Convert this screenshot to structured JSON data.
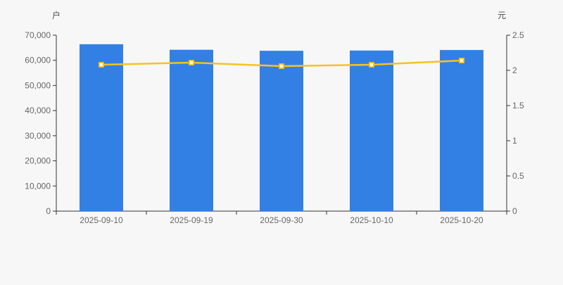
{
  "page": {
    "background_color": "#f7f7f7"
  },
  "chart_data": {
    "type": "bar",
    "subtype": "dual-axis-bar-line-combo",
    "title": "",
    "categories": [
      "2025-09-10",
      "2025-09-19",
      "2025-09-30",
      "2025-10-10",
      "2025-10-20"
    ],
    "series": [
      {
        "name": "bar-series-households",
        "type": "bar",
        "yaxis": "left",
        "color": "#3380e4",
        "values": [
          66400,
          64200,
          63800,
          63900,
          64100
        ]
      },
      {
        "name": "line-series-yuan",
        "type": "line",
        "yaxis": "right",
        "color": "#f5c321",
        "marker": "hollow-square",
        "marker_fill": "#ffffff",
        "values": [
          2.08,
          2.11,
          2.06,
          2.08,
          2.14
        ]
      }
    ],
    "left_axis": {
      "name": "户",
      "min": 0,
      "max": 70000,
      "step": 10000,
      "tick_labels": [
        "0",
        "10,000",
        "20,000",
        "30,000",
        "40,000",
        "50,000",
        "60,000",
        "70,000"
      ]
    },
    "right_axis": {
      "name": "元",
      "min": 0,
      "max": 2.5,
      "step": 0.5,
      "tick_labels": [
        "0",
        "0.5",
        "1",
        "1.5",
        "2",
        "2.5"
      ]
    },
    "grid": false,
    "legend_position": "none",
    "axis_color": "#333333",
    "tick_label_color": "#666666",
    "unit_label_color": "#4d4d4d"
  }
}
